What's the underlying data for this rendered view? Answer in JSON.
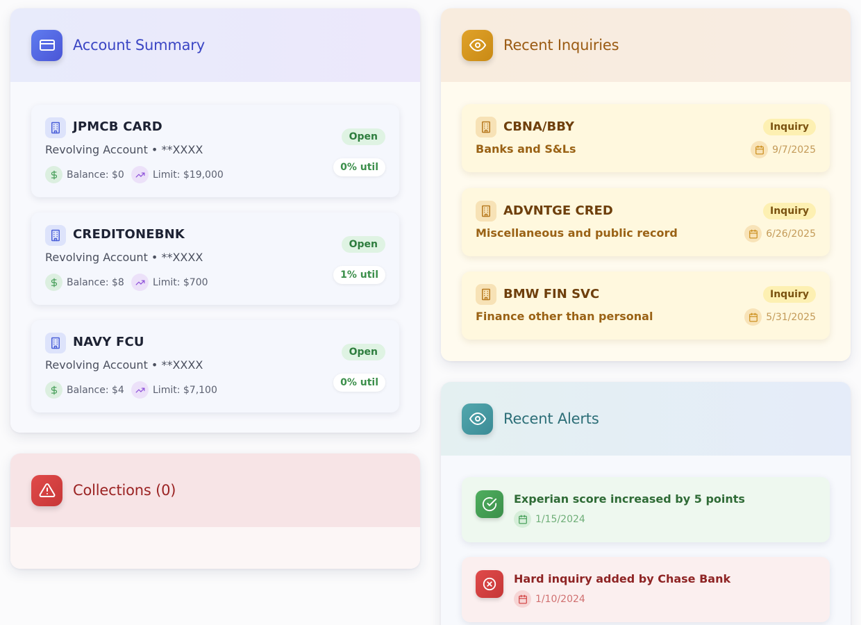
{
  "account_summary": {
    "title": "Account Summary",
    "accounts": [
      {
        "name": "JPMCB CARD",
        "type": "Revolving Account • **XXXX",
        "balance": "Balance: $0",
        "limit": "Limit: $19,000",
        "status": "Open",
        "util": "0% util"
      },
      {
        "name": "CREDITONEBNK",
        "type": "Revolving Account • **XXXX",
        "balance": "Balance: $8",
        "limit": "Limit: $700",
        "status": "Open",
        "util": "1% util"
      },
      {
        "name": "NAVY FCU",
        "type": "Revolving Account • **XXXX",
        "balance": "Balance: $4",
        "limit": "Limit: $7,100",
        "status": "Open",
        "util": "0% util"
      }
    ]
  },
  "collections": {
    "title": "Collections (0)"
  },
  "inquiries": {
    "title": "Recent Inquiries",
    "items": [
      {
        "name": "CBNA/BBY",
        "category": "Banks and S&Ls",
        "badge": "Inquiry",
        "date": "9/7/2025"
      },
      {
        "name": "ADVNTGE CRED",
        "category": "Miscellaneous and public record",
        "badge": "Inquiry",
        "date": "6/26/2025"
      },
      {
        "name": "BMW FIN SVC",
        "category": "Finance other than personal",
        "badge": "Inquiry",
        "date": "5/31/2025"
      }
    ]
  },
  "alerts": {
    "title": "Recent Alerts",
    "items": [
      {
        "message": "Experian score increased by 5 points",
        "date": "1/15/2024",
        "kind": "positive",
        "icon": "check-circle-icon"
      },
      {
        "message": "Hard inquiry added by Chase Bank",
        "date": "1/10/2024",
        "kind": "negative",
        "icon": "x-circle-icon"
      }
    ]
  },
  "colors": {
    "account_accent": "#4a55d6",
    "collections_accent": "#c73737",
    "inquiries_accent": "#c98a15",
    "alerts_accent": "#3b8b96",
    "positive": "#3f9a52",
    "negative": "#d03c3c"
  }
}
